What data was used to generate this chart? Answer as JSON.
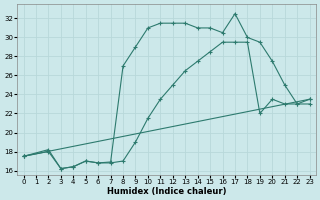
{
  "xlabel": "Humidex (Indice chaleur)",
  "bg_color": "#cce8ea",
  "grid_color": "#b8d8da",
  "line_color": "#2d7a6e",
  "xlim": [
    -0.5,
    23.5
  ],
  "ylim": [
    15.5,
    33.5
  ],
  "yticks": [
    16,
    18,
    20,
    22,
    24,
    26,
    28,
    30,
    32
  ],
  "xticks": [
    0,
    1,
    2,
    3,
    4,
    5,
    6,
    7,
    8,
    9,
    10,
    11,
    12,
    13,
    14,
    15,
    16,
    17,
    18,
    19,
    20,
    21,
    22,
    23
  ],
  "line1_x": [
    0,
    2,
    3,
    4,
    5,
    6,
    7,
    8,
    9,
    10,
    11,
    12,
    13,
    14,
    15,
    16,
    17,
    18,
    19,
    20,
    21,
    22,
    23
  ],
  "line1_y": [
    17.5,
    18.2,
    16.2,
    16.4,
    17.0,
    16.8,
    16.9,
    27.0,
    29.0,
    31.0,
    31.5,
    31.5,
    31.5,
    31.0,
    31.0,
    30.5,
    32.5,
    30.0,
    29.5,
    27.5,
    25.0,
    23.0,
    23.0
  ],
  "line2_x": [
    0,
    2,
    3,
    4,
    5,
    6,
    7,
    8,
    9,
    10,
    11,
    12,
    13,
    14,
    15,
    16,
    17,
    18,
    19,
    20,
    21,
    22,
    23
  ],
  "line2_y": [
    17.5,
    18.0,
    16.2,
    16.4,
    17.0,
    16.8,
    16.8,
    17.0,
    19.0,
    21.5,
    23.5,
    25.0,
    26.5,
    27.5,
    28.5,
    29.5,
    29.5,
    29.5,
    22.0,
    23.5,
    23.0,
    23.0,
    23.5
  ],
  "line3_x": [
    0,
    23
  ],
  "line3_y": [
    17.5,
    23.5
  ]
}
